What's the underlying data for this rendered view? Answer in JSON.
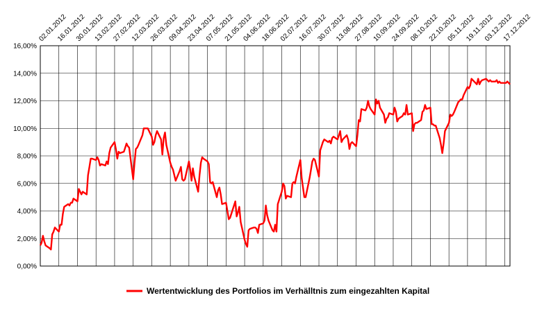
{
  "chart_data": {
    "type": "line",
    "title": "",
    "xlabel": "",
    "ylabel": "",
    "x_tick_labels": [
      "02.01.2012",
      "16.01.2012",
      "30.01.2012",
      "13.02.2012",
      "27.02.2012",
      "12.03.2012",
      "26.03.2012",
      "09.04.2012",
      "23.04.2012",
      "07.05.2012",
      "21.05.2012",
      "04.06.2012",
      "18.06.2012",
      "02.07.2012",
      "16.07.2012",
      "30.07.2012",
      "13.08.2012",
      "27.08.2012",
      "10.09.2012",
      "24.09.2012",
      "08.10.2012",
      "22.10.2012",
      "05.11.2012",
      "19.11.2012",
      "03.12.2012",
      "17.12.2012"
    ],
    "y_tick_labels": [
      "0,00%",
      "2,00%",
      "4,00%",
      "6,00%",
      "8,00%",
      "10,00%",
      "12,00%",
      "14,00%",
      "16,00%"
    ],
    "ylim": [
      0,
      16
    ],
    "grid": true,
    "legend_position": "bottom",
    "series": [
      {
        "name": "Wertentwicklung des Portfolios im Verhälltnis zum eingezahlten Kapital",
        "color": "#ff0000",
        "points": [
          [
            "02.01.2012",
            1.5
          ],
          [
            "03.01.2012",
            1.7
          ],
          [
            "04.01.2012",
            2.2
          ],
          [
            "05.01.2012",
            1.8
          ],
          [
            "06.01.2012",
            1.5
          ],
          [
            "09.01.2012",
            1.3
          ],
          [
            "10.01.2012",
            1.2
          ],
          [
            "11.01.2012",
            2.3
          ],
          [
            "12.01.2012",
            2.5
          ],
          [
            "13.01.2012",
            2.8
          ],
          [
            "16.01.2012",
            2.5
          ],
          [
            "17.01.2012",
            3.0
          ],
          [
            "18.01.2012",
            3.0
          ],
          [
            "19.01.2012",
            3.8
          ],
          [
            "20.01.2012",
            4.3
          ],
          [
            "23.01.2012",
            4.5
          ],
          [
            "24.01.2012",
            4.4
          ],
          [
            "25.01.2012",
            4.6
          ],
          [
            "26.01.2012",
            4.6
          ],
          [
            "27.01.2012",
            4.9
          ],
          [
            "30.01.2012",
            4.7
          ],
          [
            "31.01.2012",
            5.6
          ],
          [
            "01.02.2012",
            5.4
          ],
          [
            "02.02.2012",
            5.2
          ],
          [
            "03.02.2012",
            5.4
          ],
          [
            "06.02.2012",
            5.2
          ],
          [
            "07.02.2012",
            6.6
          ],
          [
            "08.02.2012",
            7.2
          ],
          [
            "09.02.2012",
            7.8
          ],
          [
            "10.02.2012",
            7.8
          ],
          [
            "13.02.2012",
            7.7
          ],
          [
            "14.02.2012",
            7.9
          ],
          [
            "15.02.2012",
            7.7
          ],
          [
            "16.02.2012",
            7.3
          ],
          [
            "17.02.2012",
            7.4
          ],
          [
            "20.02.2012",
            7.3
          ],
          [
            "21.02.2012",
            7.6
          ],
          [
            "22.02.2012",
            7.4
          ],
          [
            "23.02.2012",
            8.2
          ],
          [
            "24.02.2012",
            8.6
          ],
          [
            "27.02.2012",
            9.0
          ],
          [
            "28.02.2012",
            8.5
          ],
          [
            "29.02.2012",
            7.8
          ],
          [
            "01.03.2012",
            8.3
          ],
          [
            "02.03.2012",
            8.2
          ],
          [
            "05.03.2012",
            8.3
          ],
          [
            "06.03.2012",
            8.6
          ],
          [
            "07.03.2012",
            8.9
          ],
          [
            "08.03.2012",
            8.7
          ],
          [
            "09.03.2012",
            8.6
          ],
          [
            "12.03.2012",
            6.3
          ],
          [
            "13.03.2012",
            7.5
          ],
          [
            "14.03.2012",
            8.5
          ],
          [
            "15.03.2012",
            8.6
          ],
          [
            "16.03.2012",
            8.8
          ],
          [
            "19.03.2012",
            9.5
          ],
          [
            "20.03.2012",
            10.0
          ],
          [
            "21.03.2012",
            10.0
          ],
          [
            "22.03.2012",
            10.0
          ],
          [
            "23.03.2012",
            10.0
          ],
          [
            "26.03.2012",
            9.4
          ],
          [
            "27.03.2012",
            8.8
          ],
          [
            "28.03.2012",
            9.0
          ],
          [
            "29.03.2012",
            9.5
          ],
          [
            "30.03.2012",
            9.8
          ],
          [
            "02.04.2012",
            9.2
          ],
          [
            "03.04.2012",
            8.1
          ],
          [
            "04.04.2012",
            9.3
          ],
          [
            "05.04.2012",
            9.7
          ],
          [
            "06.04.2012",
            8.8
          ],
          [
            "09.04.2012",
            7.5
          ],
          [
            "10.04.2012",
            7.2
          ],
          [
            "11.04.2012",
            7.0
          ],
          [
            "12.04.2012",
            6.6
          ],
          [
            "13.04.2012",
            6.2
          ],
          [
            "16.04.2012",
            6.9
          ],
          [
            "17.04.2012",
            7.2
          ],
          [
            "18.04.2012",
            6.3
          ],
          [
            "19.04.2012",
            6.2
          ],
          [
            "20.04.2012",
            6.3
          ],
          [
            "23.04.2012",
            7.6
          ],
          [
            "24.04.2012",
            7.0
          ],
          [
            "25.04.2012",
            6.2
          ],
          [
            "26.04.2012",
            7.1
          ],
          [
            "27.04.2012",
            6.5
          ],
          [
            "30.04.2012",
            5.4
          ],
          [
            "01.05.2012",
            6.6
          ],
          [
            "02.05.2012",
            7.5
          ],
          [
            "03.05.2012",
            7.9
          ],
          [
            "04.05.2012",
            7.8
          ],
          [
            "07.05.2012",
            7.6
          ],
          [
            "08.05.2012",
            7.4
          ],
          [
            "09.05.2012",
            6.1
          ],
          [
            "10.05.2012",
            6.0
          ],
          [
            "11.05.2012",
            6.1
          ],
          [
            "14.05.2012",
            5.0
          ],
          [
            "15.05.2012",
            5.5
          ],
          [
            "16.05.2012",
            5.7
          ],
          [
            "17.05.2012",
            5.2
          ],
          [
            "18.05.2012",
            4.5
          ],
          [
            "21.05.2012",
            4.6
          ],
          [
            "22.05.2012",
            4.0
          ],
          [
            "23.05.2012",
            3.4
          ],
          [
            "24.05.2012",
            3.5
          ],
          [
            "25.05.2012",
            3.8
          ],
          [
            "28.05.2012",
            4.7
          ],
          [
            "29.05.2012",
            3.6
          ],
          [
            "30.05.2012",
            3.9
          ],
          [
            "31.05.2012",
            4.3
          ],
          [
            "01.06.2012",
            3.2
          ],
          [
            "04.06.2012",
            1.9
          ],
          [
            "05.06.2012",
            1.6
          ],
          [
            "06.06.2012",
            1.4
          ],
          [
            "07.06.2012",
            2.6
          ],
          [
            "08.06.2012",
            2.7
          ],
          [
            "11.06.2012",
            2.8
          ],
          [
            "12.06.2012",
            2.8
          ],
          [
            "13.06.2012",
            2.7
          ],
          [
            "14.06.2012",
            2.4
          ],
          [
            "15.06.2012",
            3.0
          ],
          [
            "18.06.2012",
            3.1
          ],
          [
            "19.06.2012",
            3.3
          ],
          [
            "20.06.2012",
            4.4
          ],
          [
            "21.06.2012",
            3.7
          ],
          [
            "22.06.2012",
            3.3
          ],
          [
            "25.06.2012",
            2.6
          ],
          [
            "26.06.2012",
            2.5
          ],
          [
            "27.06.2012",
            3.0
          ],
          [
            "28.06.2012",
            2.5
          ],
          [
            "29.06.2012",
            4.5
          ],
          [
            "02.07.2012",
            5.4
          ],
          [
            "03.07.2012",
            6.0
          ],
          [
            "04.07.2012",
            5.8
          ],
          [
            "05.07.2012",
            4.9
          ],
          [
            "06.07.2012",
            5.1
          ],
          [
            "09.07.2012",
            5.0
          ],
          [
            "10.07.2012",
            6.0
          ],
          [
            "11.07.2012",
            6.1
          ],
          [
            "12.07.2012",
            6.0
          ],
          [
            "13.07.2012",
            6.5
          ],
          [
            "16.07.2012",
            7.7
          ],
          [
            "17.07.2012",
            6.4
          ],
          [
            "18.07.2012",
            5.7
          ],
          [
            "19.07.2012",
            5.0
          ],
          [
            "20.07.2012",
            5.0
          ],
          [
            "23.07.2012",
            6.4
          ],
          [
            "24.07.2012",
            7.0
          ],
          [
            "25.07.2012",
            7.6
          ],
          [
            "26.07.2012",
            7.8
          ],
          [
            "27.07.2012",
            7.7
          ],
          [
            "30.07.2012",
            6.5
          ],
          [
            "31.07.2012",
            8.4
          ],
          [
            "01.08.2012",
            8.7
          ],
          [
            "02.08.2012",
            9.0
          ],
          [
            "03.08.2012",
            9.2
          ],
          [
            "06.08.2012",
            9.0
          ],
          [
            "07.08.2012",
            9.1
          ],
          [
            "08.08.2012",
            8.9
          ],
          [
            "09.08.2012",
            9.3
          ],
          [
            "10.08.2012",
            9.4
          ],
          [
            "13.08.2012",
            9.2
          ],
          [
            "14.08.2012",
            9.5
          ],
          [
            "15.08.2012",
            9.8
          ],
          [
            "16.08.2012",
            9.0
          ],
          [
            "17.08.2012",
            9.2
          ],
          [
            "20.08.2012",
            9.5
          ],
          [
            "21.08.2012",
            9.2
          ],
          [
            "22.08.2012",
            8.5
          ],
          [
            "23.08.2012",
            8.9
          ],
          [
            "24.08.2012",
            9.0
          ],
          [
            "27.08.2012",
            8.7
          ],
          [
            "28.08.2012",
            9.5
          ],
          [
            "29.08.2012",
            10.6
          ],
          [
            "30.08.2012",
            10.5
          ],
          [
            "31.08.2012",
            11.4
          ],
          [
            "03.09.2012",
            11.3
          ],
          [
            "04.09.2012",
            11.5
          ],
          [
            "05.09.2012",
            12.0
          ],
          [
            "06.09.2012",
            11.6
          ],
          [
            "07.09.2012",
            11.4
          ],
          [
            "10.09.2012",
            11.0
          ],
          [
            "11.09.2012",
            12.1
          ],
          [
            "12.09.2012",
            11.8
          ],
          [
            "13.09.2012",
            12.0
          ],
          [
            "14.09.2012",
            11.5
          ],
          [
            "17.09.2012",
            11.0
          ],
          [
            "18.09.2012",
            10.4
          ],
          [
            "19.09.2012",
            10.7
          ],
          [
            "20.09.2012",
            10.8
          ],
          [
            "21.09.2012",
            11.1
          ],
          [
            "24.09.2012",
            11.0
          ],
          [
            "25.09.2012",
            11.5
          ],
          [
            "26.09.2012",
            11.2
          ],
          [
            "27.09.2012",
            10.5
          ],
          [
            "28.09.2012",
            10.7
          ],
          [
            "01.10.2012",
            10.9
          ],
          [
            "02.10.2012",
            11.1
          ],
          [
            "03.10.2012",
            11.0
          ],
          [
            "04.10.2012",
            11.7
          ],
          [
            "05.10.2012",
            11.0
          ],
          [
            "08.10.2012",
            11.1
          ],
          [
            "09.10.2012",
            9.8
          ],
          [
            "10.10.2012",
            10.3
          ],
          [
            "11.10.2012",
            10.4
          ],
          [
            "12.10.2012",
            10.4
          ],
          [
            "15.10.2012",
            10.6
          ],
          [
            "16.10.2012",
            11.2
          ],
          [
            "17.10.2012",
            11.3
          ],
          [
            "18.10.2012",
            11.7
          ],
          [
            "19.10.2012",
            11.4
          ],
          [
            "22.10.2012",
            11.5
          ],
          [
            "23.10.2012",
            10.3
          ],
          [
            "24.10.2012",
            10.3
          ],
          [
            "25.10.2012",
            10.2
          ],
          [
            "26.10.2012",
            10.2
          ],
          [
            "29.10.2012",
            9.3
          ],
          [
            "30.10.2012",
            8.8
          ],
          [
            "31.10.2012",
            8.2
          ],
          [
            "01.11.2012",
            8.9
          ],
          [
            "02.11.2012",
            9.8
          ],
          [
            "05.11.2012",
            10.4
          ],
          [
            "06.11.2012",
            11.0
          ],
          [
            "07.11.2012",
            10.9
          ],
          [
            "08.11.2012",
            11.0
          ],
          [
            "09.11.2012",
            11.2
          ],
          [
            "12.11.2012",
            11.9
          ],
          [
            "13.11.2012",
            12.0
          ],
          [
            "14.11.2012",
            12.1
          ],
          [
            "15.11.2012",
            12.1
          ],
          [
            "16.11.2012",
            12.4
          ],
          [
            "19.11.2012",
            13.0
          ],
          [
            "20.11.2012",
            12.9
          ],
          [
            "21.11.2012",
            13.1
          ],
          [
            "22.11.2012",
            13.6
          ],
          [
            "23.11.2012",
            13.5
          ],
          [
            "26.11.2012",
            13.2
          ],
          [
            "27.11.2012",
            13.6
          ],
          [
            "28.11.2012",
            13.2
          ],
          [
            "29.11.2012",
            13.4
          ],
          [
            "30.11.2012",
            13.5
          ],
          [
            "03.12.2012",
            13.6
          ],
          [
            "04.12.2012",
            13.5
          ],
          [
            "05.12.2012",
            13.4
          ],
          [
            "06.12.2012",
            13.5
          ],
          [
            "07.12.2012",
            13.4
          ],
          [
            "10.12.2012",
            13.4
          ],
          [
            "11.12.2012",
            13.5
          ],
          [
            "12.12.2012",
            13.3
          ],
          [
            "13.12.2012",
            13.4
          ],
          [
            "14.12.2012",
            13.3
          ],
          [
            "17.12.2012",
            13.3
          ],
          [
            "18.12.2012",
            13.3
          ],
          [
            "19.12.2012",
            13.4
          ],
          [
            "20.12.2012",
            13.3
          ],
          [
            "21.12.2012",
            13.2
          ]
        ]
      }
    ]
  }
}
